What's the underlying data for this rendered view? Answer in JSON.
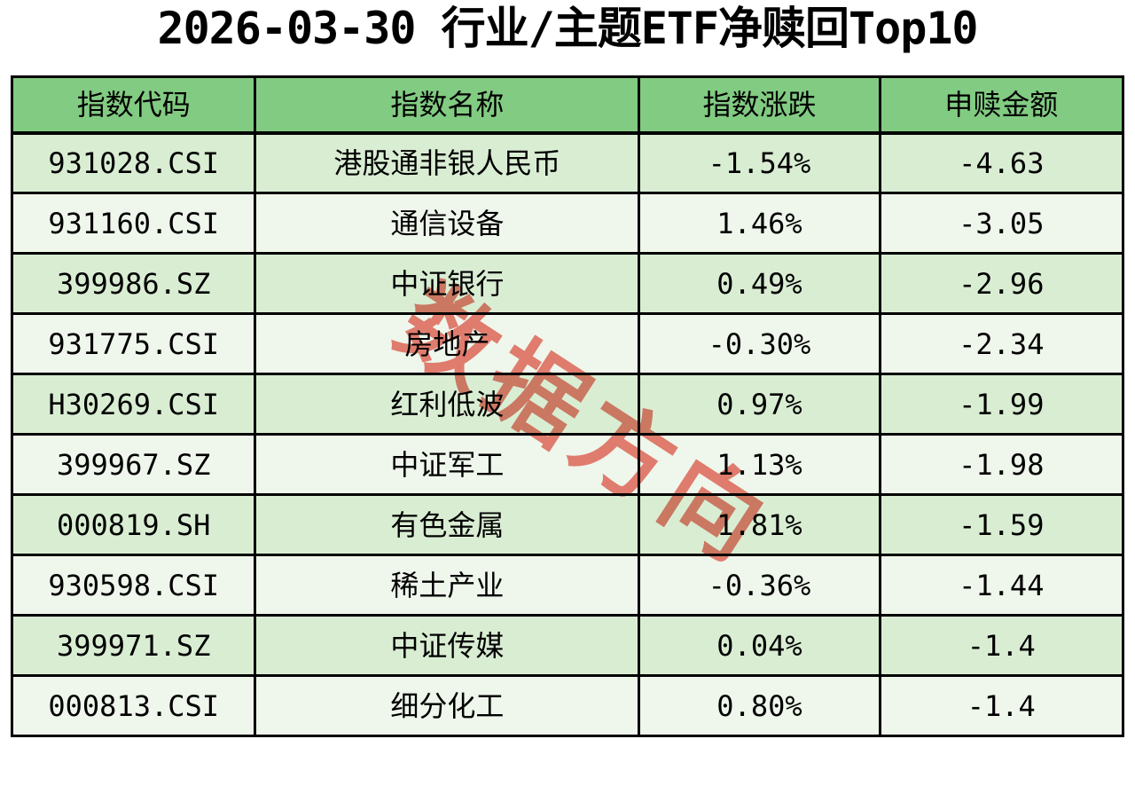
{
  "chart_data": {
    "type": "table",
    "title": "2026-03-30 行业/主题ETF净赎回Top10",
    "columns": [
      "指数代码",
      "指数名称",
      "指数涨跌",
      "申赎金额"
    ],
    "rows": [
      [
        "931028.CSI",
        "港股通非银人民币",
        "-1.54%",
        "-4.63"
      ],
      [
        "931160.CSI",
        "通信设备",
        "1.46%",
        "-3.05"
      ],
      [
        "399986.SZ",
        "中证银行",
        "0.49%",
        "-2.96"
      ],
      [
        "931775.CSI",
        "房地产",
        "-0.30%",
        "-2.34"
      ],
      [
        "H30269.CSI",
        "红利低波",
        "0.97%",
        "-1.99"
      ],
      [
        "399967.SZ",
        "中证军工",
        "1.13%",
        "-1.98"
      ],
      [
        "000819.SH",
        "有色金属",
        "1.81%",
        "-1.59"
      ],
      [
        "930598.CSI",
        "稀土产业",
        "-0.36%",
        "-1.44"
      ],
      [
        "399971.SZ",
        "中证传媒",
        "0.04%",
        "-1.4"
      ],
      [
        "000813.CSI",
        "细分化工",
        "0.80%",
        "-1.4"
      ]
    ]
  },
  "watermark": "数据方向",
  "colors": {
    "header_bg": "#82cb82",
    "row_odd_bg": "#d9edd3",
    "row_even_bg": "#eff6ec",
    "border": "#000000",
    "watermark": "#ee8176",
    "title_text": "#000000"
  }
}
